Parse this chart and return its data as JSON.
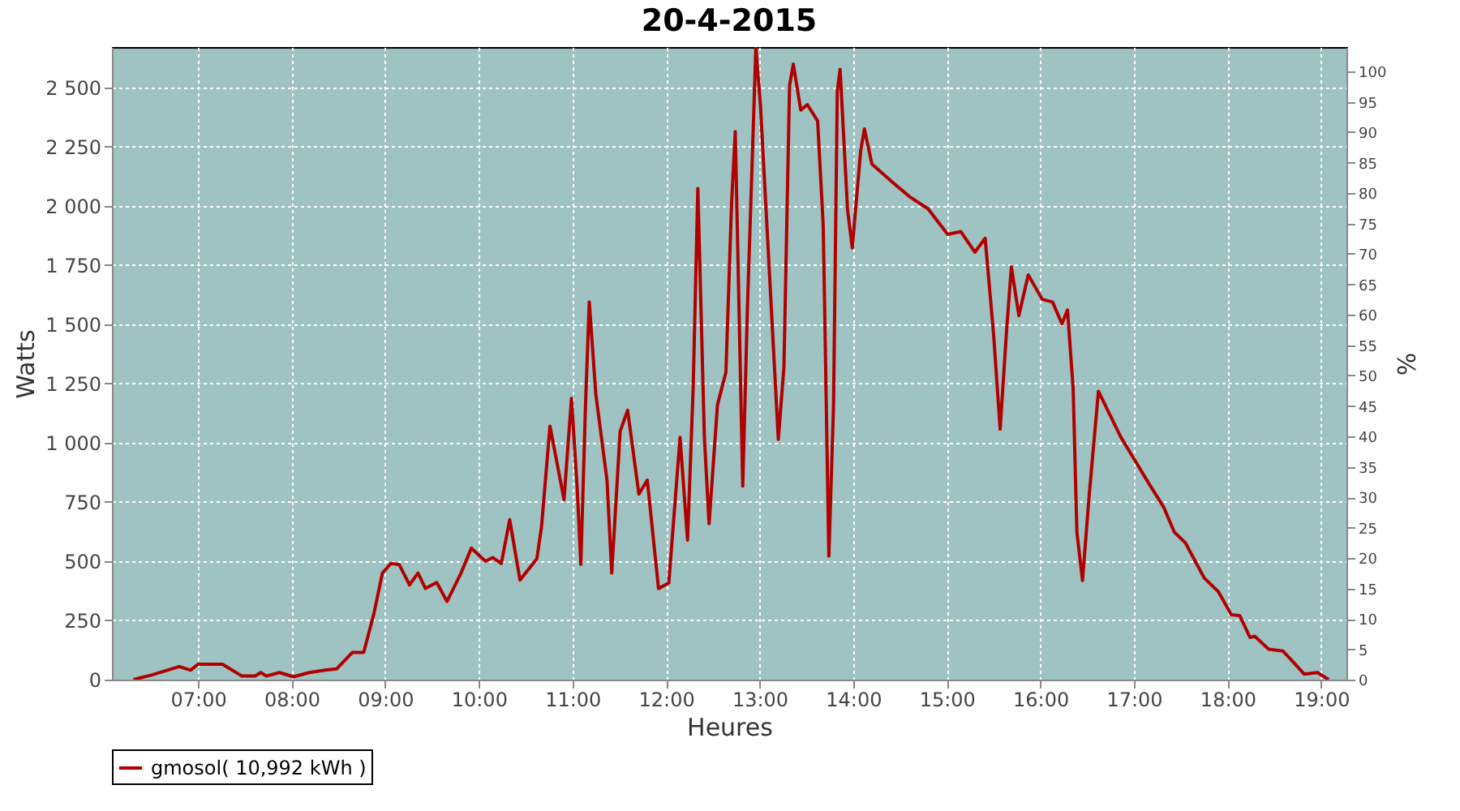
{
  "chart_data": {
    "type": "line",
    "title": "20-4-2015",
    "xlabel": "Heures",
    "ylabel": "Watts",
    "y2label": "%",
    "x": [
      6.31,
      6.51,
      6.8,
      6.92,
      7.0,
      7.26,
      7.47,
      7.61,
      7.67,
      7.73,
      7.87,
      8.02,
      8.19,
      8.36,
      8.48,
      8.65,
      8.77,
      8.88,
      8.97,
      9.06,
      9.15,
      9.26,
      9.35,
      9.43,
      9.55,
      9.66,
      9.81,
      9.92,
      10.07,
      10.15,
      10.24,
      10.33,
      10.44,
      10.62,
      10.67,
      10.76,
      10.91,
      10.99,
      11.05,
      11.09,
      11.14,
      11.18,
      11.25,
      11.37,
      11.42,
      11.51,
      11.59,
      11.71,
      11.8,
      11.92,
      12.03,
      12.15,
      12.23,
      12.29,
      12.34,
      12.41,
      12.46,
      12.55,
      12.64,
      12.7,
      12.74,
      12.82,
      12.87,
      12.96,
      13.01,
      13.1,
      13.2,
      13.26,
      13.32,
      13.36,
      13.44,
      13.51,
      13.62,
      13.68,
      13.74,
      13.79,
      13.83,
      13.86,
      13.94,
      13.99,
      14.08,
      14.12,
      14.2,
      14.43,
      14.6,
      14.8,
      15.01,
      15.15,
      15.3,
      15.41,
      15.5,
      15.57,
      15.64,
      15.69,
      15.77,
      15.87,
      16.02,
      16.13,
      16.23,
      16.29,
      16.35,
      16.39,
      16.45,
      16.52,
      16.62,
      16.86,
      17.0,
      17.14,
      17.32,
      17.43,
      17.55,
      17.75,
      17.9,
      18.04,
      18.13,
      18.24,
      18.29,
      18.44,
      18.59,
      18.7,
      18.82,
      18.96,
      19.08
    ],
    "series": [
      {
        "name": "gmosol( 10,992 kWh )",
        "color": "#b00000",
        "values": [
          0,
          20,
          55,
          40,
          65,
          65,
          15,
          15,
          30,
          15,
          30,
          12,
          30,
          40,
          45,
          115,
          115,
          280,
          450,
          490,
          485,
          400,
          450,
          385,
          410,
          330,
          450,
          555,
          500,
          515,
          490,
          675,
          420,
          510,
          645,
          1070,
          760,
          1187,
          817,
          486,
          1160,
          1594,
          1205,
          840,
          450,
          1048,
          1137,
          783,
          842,
          384,
          408,
          1023,
          589,
          1228,
          2073,
          1023,
          658,
          1160,
          1297,
          2007,
          2313,
          817,
          1571,
          2667,
          2418,
          1754,
          1014,
          1320,
          2507,
          2598,
          2404,
          2427,
          2358,
          1913,
          521,
          1160,
          2484,
          2576,
          1982,
          1822,
          2233,
          2324,
          2176,
          2096,
          2039,
          1987,
          1879,
          1891,
          1804,
          1863,
          1457,
          1057,
          1480,
          1742,
          1536,
          1708,
          1605,
          1594,
          1502,
          1560,
          1228,
          623,
          418,
          772,
          1217,
          1023,
          932,
          840,
          726,
          623,
          577,
          429,
          372,
          274,
          270,
          178,
          183,
          128,
          121,
          75,
          23,
          30,
          0
        ]
      }
    ],
    "xlim": [
      6.08,
      19.27
    ],
    "xticks": [
      {
        "value": 7,
        "label": "07:00"
      },
      {
        "value": 8,
        "label": "08:00"
      },
      {
        "value": 9,
        "label": "09:00"
      },
      {
        "value": 10,
        "label": "10:00"
      },
      {
        "value": 11,
        "label": "11:00"
      },
      {
        "value": 12,
        "label": "12:00"
      },
      {
        "value": 13,
        "label": "13:00"
      },
      {
        "value": 14,
        "label": "14:00"
      },
      {
        "value": 15,
        "label": "15:00"
      },
      {
        "value": 16,
        "label": "16:00"
      },
      {
        "value": 17,
        "label": "17:00"
      },
      {
        "value": 18,
        "label": "18:00"
      },
      {
        "value": 19,
        "label": "19:00"
      }
    ],
    "ylim": [
      0,
      2670
    ],
    "yticks": [
      0,
      {
        "value": 250,
        "label": "250"
      },
      {
        "value": 500,
        "label": "500"
      },
      {
        "value": 750,
        "label": "750"
      },
      {
        "value": 1000,
        "label": "1 000"
      },
      {
        "value": 1250,
        "label": "1 250"
      },
      {
        "value": 1500,
        "label": "1 500"
      },
      {
        "value": 1750,
        "label": "1 750"
      },
      {
        "value": 2000,
        "label": "2 000"
      },
      {
        "value": 2250,
        "label": "2 250"
      },
      {
        "value": 2500,
        "label": "2 500"
      }
    ],
    "y2lim": [
      0,
      104
    ],
    "y2ticks": [
      0,
      5,
      10,
      15,
      20,
      25,
      30,
      35,
      40,
      45,
      50,
      55,
      60,
      65,
      70,
      75,
      80,
      85,
      90,
      95,
      100
    ],
    "grid": true,
    "legend": "bottom",
    "marker": "none",
    "line_style": "solid"
  }
}
